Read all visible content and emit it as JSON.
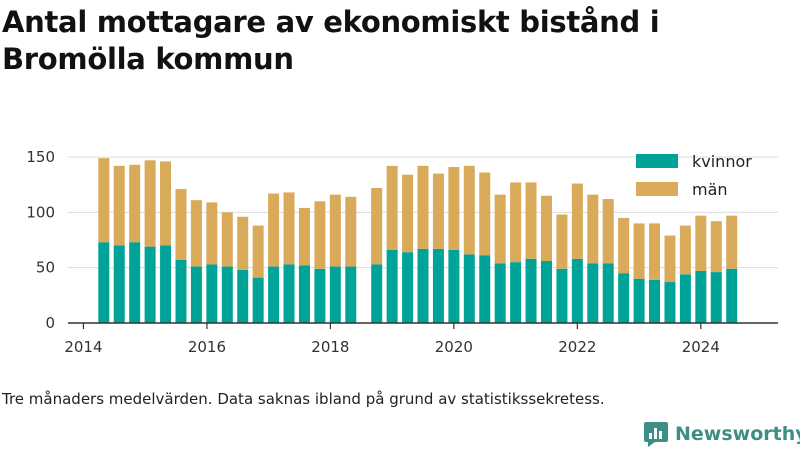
{
  "chart_data": {
    "type": "bar",
    "stacked": true,
    "title": "Antal mottagare av ekonomiskt bistånd i Bromölla kommun",
    "note": "Tre månaders medelvärden. Data saknas ibland på grund av statistikssekretess.",
    "brand": "Newsworthy",
    "xlabel": "",
    "ylabel": "",
    "xlim": [
      2013.75,
      2025.25
    ],
    "ylim": [
      0,
      150
    ],
    "yticks": [
      0,
      50,
      100,
      150
    ],
    "xticks": [
      2014,
      2016,
      2018,
      2020,
      2022,
      2024
    ],
    "grid": true,
    "legend_position": "top-right",
    "x": [
      2014.33,
      2014.58,
      2014.83,
      2015.08,
      2015.33,
      2015.58,
      2015.83,
      2016.08,
      2016.33,
      2016.58,
      2016.83,
      2017.08,
      2017.33,
      2017.58,
      2017.83,
      2018.08,
      2018.33,
      2018.75,
      2019.0,
      2019.25,
      2019.5,
      2019.75,
      2020.0,
      2020.25,
      2020.5,
      2020.75,
      2021.0,
      2021.25,
      2021.5,
      2021.75,
      2022.0,
      2022.25,
      2022.5,
      2022.75,
      2023.0,
      2023.25,
      2023.5,
      2023.75,
      2024.0,
      2024.25,
      2024.5
    ],
    "series": [
      {
        "name": "kvinnor",
        "color": "#00a398",
        "values": [
          73,
          70,
          73,
          69,
          70,
          57,
          51,
          53,
          51,
          48,
          41,
          51,
          53,
          52,
          49,
          51,
          51,
          53,
          66,
          64,
          67,
          67,
          66,
          62,
          61,
          54,
          55,
          58,
          56,
          49,
          58,
          54,
          54,
          45,
          40,
          39,
          37,
          44,
          47,
          46,
          49
        ]
      },
      {
        "name": "män",
        "color": "#d9aa5a",
        "values": [
          76,
          72,
          70,
          78,
          76,
          64,
          60,
          56,
          49,
          48,
          47,
          66,
          65,
          52,
          61,
          65,
          63,
          69,
          76,
          70,
          75,
          68,
          75,
          80,
          75,
          62,
          72,
          69,
          59,
          49,
          68,
          62,
          58,
          50,
          50,
          51,
          42,
          44,
          50,
          46,
          48
        ]
      }
    ]
  }
}
